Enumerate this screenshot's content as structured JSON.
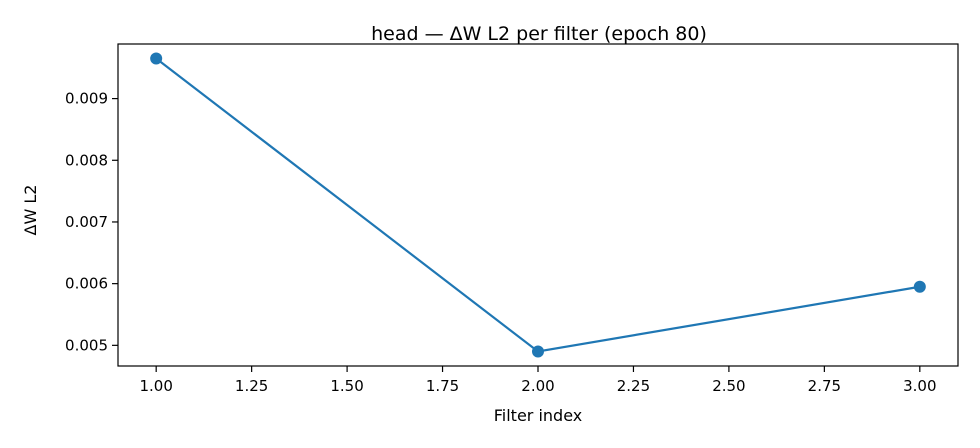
{
  "chart_data": {
    "type": "line",
    "title": "head — ΔW L2 per filter (epoch 80)",
    "xlabel": "Filter index",
    "ylabel": "ΔW L2",
    "x": [
      1.0,
      2.0,
      3.0
    ],
    "series": [
      {
        "values": [
          0.00965,
          0.0049,
          0.00595
        ],
        "color": "#1f77b4",
        "marker": "circle"
      }
    ],
    "xlim": [
      0.9,
      3.1
    ],
    "ylim": [
      0.004665,
      0.009885
    ],
    "xticks": [
      1.0,
      1.25,
      1.5,
      1.75,
      2.0,
      2.25,
      2.5,
      2.75,
      3.0
    ],
    "xtick_labels": [
      "1.00",
      "1.25",
      "1.50",
      "1.75",
      "2.00",
      "2.25",
      "2.50",
      "2.75",
      "3.00"
    ],
    "yticks": [
      0.005,
      0.006,
      0.007,
      0.008,
      0.009
    ],
    "ytick_labels": [
      "0.005",
      "0.006",
      "0.007",
      "0.008",
      "0.009"
    ],
    "grid": false,
    "legend": "none"
  }
}
